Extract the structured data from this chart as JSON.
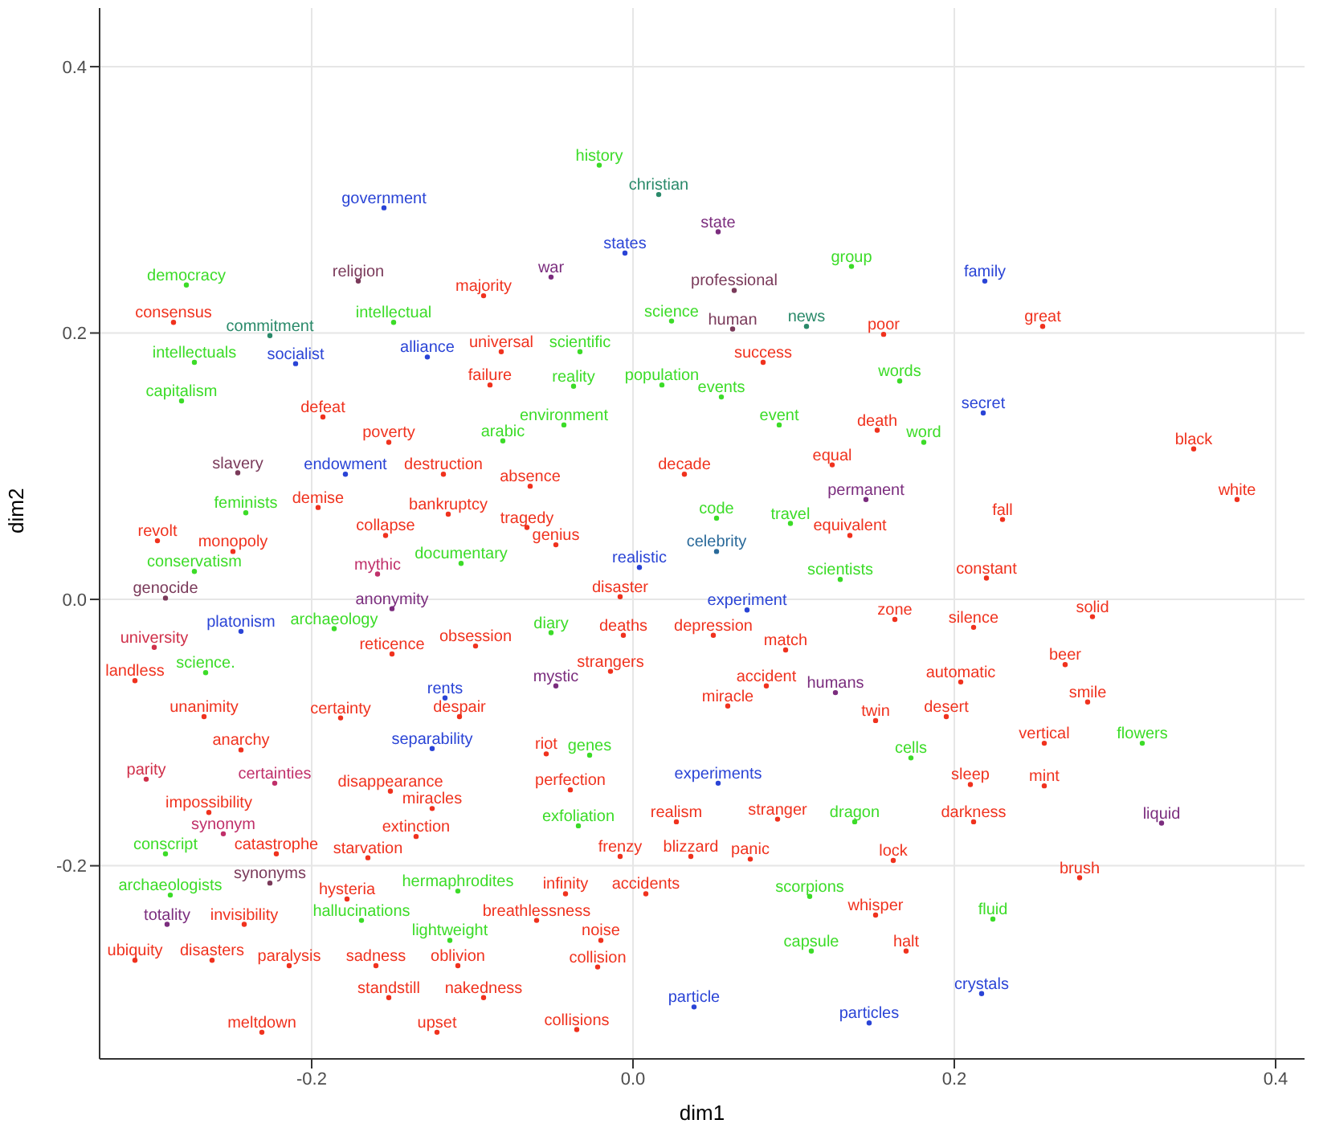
{
  "chart_data": {
    "type": "scatter",
    "xlabel": "dim1",
    "ylabel": "dim2",
    "marker": "circle",
    "grid": true,
    "xlim": [
      -0.332,
      0.418
    ],
    "ylim": [
      -0.345,
      0.444
    ],
    "xticks": [
      -0.2,
      {
        "value": 0,
        "label": "0.0"
      },
      0.2,
      0.4
    ],
    "yticks": [
      -0.2,
      {
        "value": 0,
        "label": "0.0"
      },
      0.2,
      0.4
    ],
    "value_labels": [
      "government",
      "history",
      "christian",
      "state",
      "states",
      "war",
      "democracy",
      "religion",
      "majority",
      "professional",
      "group",
      "family",
      "science",
      "consensus",
      "commitment",
      "intellectual",
      "human",
      "news",
      "poor",
      "great",
      "intellectuals",
      "socialist",
      "alliance",
      "universal",
      "scientific",
      "failure",
      "reality",
      "population",
      "success",
      "words",
      "events",
      "capitalism",
      "defeat",
      "arabic",
      "environment",
      "event",
      "death",
      "secret",
      "word",
      "poverty",
      "black",
      "decade",
      "equal",
      "absence",
      "slavery",
      "endowment",
      "destruction",
      "permanent",
      "fall",
      "feminists",
      "demise",
      "bankruptcy",
      "white",
      "code",
      "travel",
      "tragedy",
      "genius",
      "revolt",
      "collapse",
      "equivalent",
      "monopoly",
      "documentary",
      "celebrity",
      "realistic",
      "conservatism",
      "mythic",
      "disaster",
      "scientists",
      "constant",
      "genocide",
      "anonymity",
      "experiment",
      "solid",
      "zone",
      "silence",
      "university",
      "platonism",
      "archaeology",
      "diary",
      "deaths",
      "depression",
      "reticence",
      "obsession",
      "match",
      "beer",
      "landless",
      "science.",
      "strangers",
      "accident",
      "humans",
      "automatic",
      "mystic",
      "rents",
      "miracle",
      "smile",
      "despair",
      "unanimity",
      "certainty",
      "twin",
      "desert",
      "separability",
      "riot",
      "genes",
      "anarchy",
      "vertical",
      "flowers",
      "cells",
      "parity",
      "certainties",
      "disappearance",
      "perfection",
      "experiments",
      "sleep",
      "mint",
      "impossibility",
      "synonym",
      "miracles",
      "extinction",
      "exfoliation",
      "realism",
      "stranger",
      "dragon",
      "darkness",
      "liquid",
      "conscript",
      "catastrophe",
      "starvation",
      "frenzy",
      "blizzard",
      "panic",
      "lock",
      "archaeologists",
      "synonyms",
      "hysteria",
      "hermaphrodites",
      "infinity",
      "accidents",
      "scorpions",
      "brush",
      "whisper",
      "fluid",
      "totality",
      "invisibility",
      "hallucinations",
      "lightweight",
      "breathlessness",
      "noise",
      "ubiquity",
      "disasters",
      "paralysis",
      "sadness",
      "oblivion",
      "capsule",
      "halt",
      "collision",
      "standstill",
      "nakedness",
      "crystals",
      "particle",
      "particles",
      "meltdown",
      "upset",
      "collisions"
    ],
    "x": [
      -0.155,
      -0.021,
      0.016,
      0.053,
      -0.005,
      -0.051,
      -0.278,
      -0.171,
      -0.093,
      0.063,
      0.136,
      0.219,
      0.024,
      -0.286,
      -0.226,
      -0.149,
      0.062,
      0.108,
      0.156,
      0.255,
      -0.273,
      -0.21,
      -0.128,
      -0.082,
      -0.033,
      -0.089,
      -0.037,
      0.018,
      0.081,
      0.166,
      0.055,
      -0.281,
      -0.193,
      -0.081,
      -0.043,
      0.091,
      0.152,
      0.218,
      0.181,
      -0.152,
      0.349,
      0.032,
      0.124,
      -0.064,
      -0.246,
      -0.179,
      -0.118,
      0.145,
      0.23,
      -0.241,
      -0.196,
      -0.115,
      0.376,
      0.052,
      0.098,
      -0.066,
      -0.048,
      -0.296,
      -0.154,
      0.135,
      -0.249,
      -0.107,
      0.052,
      0.004,
      -0.273,
      -0.159,
      -0.008,
      0.129,
      0.22,
      -0.291,
      -0.15,
      0.071,
      0.286,
      0.163,
      0.212,
      -0.298,
      -0.244,
      -0.186,
      -0.051,
      -0.006,
      0.05,
      -0.15,
      -0.098,
      0.095,
      0.269,
      -0.31,
      -0.266,
      -0.014,
      0.083,
      0.126,
      0.204,
      -0.048,
      -0.117,
      0.059,
      0.283,
      -0.108,
      -0.267,
      -0.182,
      0.151,
      0.195,
      -0.125,
      -0.054,
      -0.027,
      -0.244,
      0.256,
      0.317,
      0.173,
      -0.303,
      -0.223,
      -0.151,
      -0.039,
      0.053,
      0.21,
      0.256,
      -0.264,
      -0.255,
      -0.125,
      -0.135,
      -0.034,
      0.027,
      0.09,
      0.138,
      0.212,
      0.329,
      -0.291,
      -0.222,
      -0.165,
      -0.008,
      0.036,
      0.073,
      0.162,
      -0.288,
      -0.226,
      -0.178,
      -0.109,
      -0.042,
      0.008,
      0.11,
      0.278,
      0.151,
      0.224,
      -0.29,
      -0.242,
      -0.169,
      -0.114,
      -0.06,
      -0.02,
      -0.31,
      -0.262,
      -0.214,
      -0.16,
      -0.109,
      0.111,
      0.17,
      -0.022,
      -0.152,
      -0.093,
      0.217,
      0.038,
      0.147,
      -0.231,
      -0.122,
      -0.035
    ],
    "values": [
      0.294,
      0.326,
      0.304,
      0.276,
      0.26,
      0.242,
      0.236,
      0.239,
      0.228,
      0.232,
      0.25,
      0.239,
      0.209,
      0.208,
      0.198,
      0.208,
      0.203,
      0.205,
      0.199,
      0.205,
      0.178,
      0.177,
      0.182,
      0.186,
      0.186,
      0.161,
      0.16,
      0.161,
      0.178,
      0.164,
      0.152,
      0.149,
      0.137,
      0.119,
      0.131,
      0.131,
      0.127,
      0.14,
      0.118,
      0.118,
      0.113,
      0.094,
      0.101,
      0.085,
      0.095,
      0.094,
      0.094,
      0.075,
      0.06,
      0.065,
      0.069,
      0.064,
      0.075,
      0.061,
      0.057,
      0.054,
      0.041,
      0.044,
      0.048,
      0.048,
      0.036,
      0.027,
      0.036,
      0.024,
      0.021,
      0.019,
      0.002,
      0.015,
      0.016,
      0.001,
      -0.007,
      -0.008,
      -0.013,
      -0.015,
      -0.021,
      -0.036,
      -0.024,
      -0.022,
      -0.025,
      -0.027,
      -0.027,
      -0.041,
      -0.035,
      -0.038,
      -0.049,
      -0.061,
      -0.055,
      -0.054,
      -0.065,
      -0.07,
      -0.062,
      -0.065,
      -0.074,
      -0.08,
      -0.077,
      -0.088,
      -0.088,
      -0.089,
      -0.091,
      -0.088,
      -0.112,
      -0.116,
      -0.117,
      -0.113,
      -0.108,
      -0.108,
      -0.119,
      -0.135,
      -0.138,
      -0.144,
      -0.143,
      -0.138,
      -0.139,
      -0.14,
      -0.16,
      -0.176,
      -0.157,
      -0.178,
      -0.17,
      -0.167,
      -0.165,
      -0.167,
      -0.167,
      -0.168,
      -0.191,
      -0.191,
      -0.194,
      -0.193,
      -0.193,
      -0.195,
      -0.196,
      -0.222,
      -0.213,
      -0.225,
      -0.219,
      -0.221,
      -0.221,
      -0.223,
      -0.209,
      -0.237,
      -0.24,
      -0.244,
      -0.244,
      -0.241,
      -0.256,
      -0.241,
      -0.256,
      -0.271,
      -0.271,
      -0.275,
      -0.275,
      -0.275,
      -0.264,
      -0.264,
      -0.276,
      -0.299,
      -0.299,
      -0.296,
      -0.306,
      -0.318,
      -0.325,
      -0.325,
      -0.323
    ],
    "colors": [
      "#2a44d6",
      "#3cdc28",
      "#2a8a6a",
      "#7b2d7e",
      "#2a44d6",
      "#7b2d7e",
      "#3cdc28",
      "#7a3a5a",
      "#f0321e",
      "#7a3a5a",
      "#3cdc28",
      "#2a44d6",
      "#3cdc28",
      "#f0321e",
      "#2a8a6a",
      "#3cdc28",
      "#7a3a5a",
      "#2a8a6a",
      "#f0321e",
      "#f0321e",
      "#3cdc28",
      "#2a44d6",
      "#2a44d6",
      "#f0321e",
      "#3cdc28",
      "#f0321e",
      "#3cdc28",
      "#3cdc28",
      "#f0321e",
      "#3cdc28",
      "#3cdc28",
      "#3cdc28",
      "#f0321e",
      "#3cdc28",
      "#3cdc28",
      "#3cdc28",
      "#f0321e",
      "#2a44d6",
      "#3cdc28",
      "#f0321e",
      "#f0321e",
      "#f0321e",
      "#f0321e",
      "#f0321e",
      "#7a3a5a",
      "#2a44d6",
      "#f0321e",
      "#7b2d7e",
      "#f0321e",
      "#3cdc28",
      "#f0321e",
      "#f0321e",
      "#f0321e",
      "#3cdc28",
      "#3cdc28",
      "#f0321e",
      "#f0321e",
      "#f0321e",
      "#f0321e",
      "#f0321e",
      "#f0321e",
      "#3cdc28",
      "#2a6a9a",
      "#2a44d6",
      "#3cdc28",
      "#c0306a",
      "#f0321e",
      "#3cdc28",
      "#f0321e",
      "#7a3a5a",
      "#7b2d7e",
      "#2a44d6",
      "#f0321e",
      "#f0321e",
      "#f0321e",
      "#d0304a",
      "#2a44d6",
      "#3cdc28",
      "#3cdc28",
      "#f0321e",
      "#f0321e",
      "#f0321e",
      "#f0321e",
      "#f0321e",
      "#f0321e",
      "#f0321e",
      "#3cdc28",
      "#f0321e",
      "#f0321e",
      "#7b2d7e",
      "#f0321e",
      "#7b2d7e",
      "#2a44d6",
      "#f0321e",
      "#f0321e",
      "#f0321e",
      "#f0321e",
      "#f0321e",
      "#f0321e",
      "#f0321e",
      "#2a44d6",
      "#f0321e",
      "#3cdc28",
      "#f0321e",
      "#f0321e",
      "#3cdc28",
      "#3cdc28",
      "#d0304a",
      "#c0306a",
      "#f0321e",
      "#f0321e",
      "#2a44d6",
      "#f0321e",
      "#f0321e",
      "#f0321e",
      "#c0306a",
      "#f0321e",
      "#f0321e",
      "#3cdc28",
      "#f0321e",
      "#f0321e",
      "#3cdc28",
      "#f0321e",
      "#7b2d7e",
      "#3cdc28",
      "#f0321e",
      "#f0321e",
      "#f0321e",
      "#f0321e",
      "#f0321e",
      "#f0321e",
      "#3cdc28",
      "#7a3a5a",
      "#f0321e",
      "#3cdc28",
      "#f0321e",
      "#f0321e",
      "#3cdc28",
      "#f0321e",
      "#f0321e",
      "#3cdc28",
      "#7b2d7e",
      "#f0321e",
      "#3cdc28",
      "#3cdc28",
      "#f0321e",
      "#f0321e",
      "#f0321e",
      "#f0321e",
      "#f0321e",
      "#f0321e",
      "#f0321e",
      "#3cdc28",
      "#f0321e",
      "#f0321e",
      "#f0321e",
      "#f0321e",
      "#2a44d6",
      "#2a44d6",
      "#2a44d6",
      "#f0321e",
      "#f0321e",
      "#f0321e"
    ]
  }
}
